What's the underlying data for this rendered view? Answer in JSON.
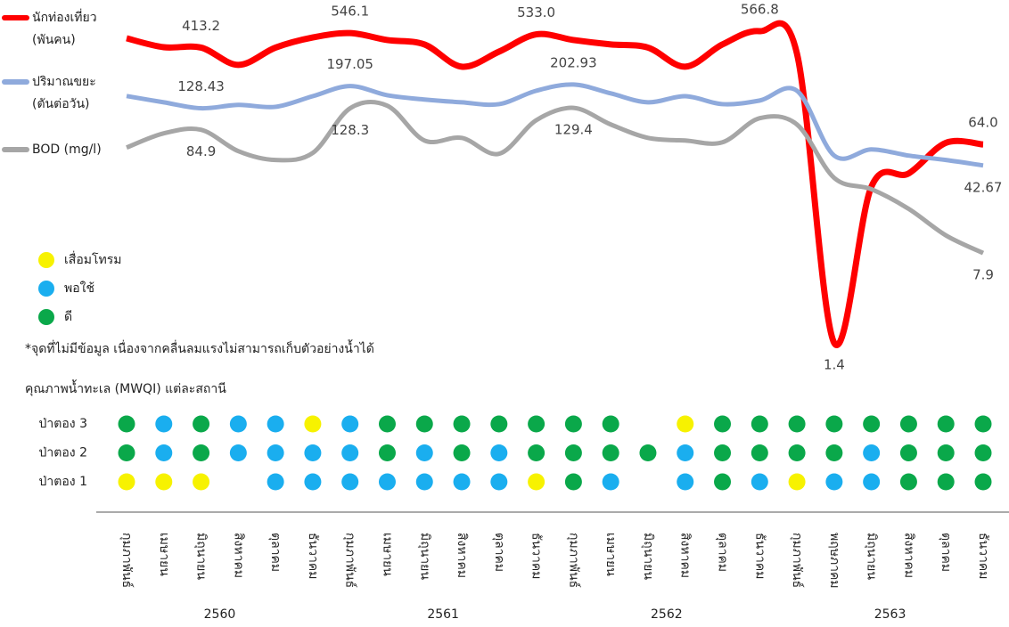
{
  "chart_data": {
    "type": "line",
    "log_scale": true,
    "categories": [
      "กุมภาพันธ์",
      "เมษายน",
      "มิถุนายน",
      "สิงหาคม",
      "ตุลาคม",
      "ธันวาคม",
      "กุมภาพันธ์",
      "เมษายน",
      "มิถุนายน",
      "สิงหาคม",
      "ตุลาคม",
      "ธันวาคม",
      "กุมภาพันธ์",
      "เมษายน",
      "มิถุนายน",
      "สิงหาคม",
      "ตุลาคม",
      "ธันวาคม",
      "กุมภาพันธ์",
      "พฤษภาคม",
      "มิถุนายน",
      "สิงหาคม",
      "ตุลาคม",
      "ธันวาคม"
    ],
    "groups": [
      "2560",
      "2561",
      "2562",
      "2563"
    ],
    "series": [
      {
        "name": "นักท่องเที่ยว\n(พันคน)",
        "color": "#ff0000",
        "values": [
          494,
          416,
          413.2,
          296,
          413,
          502,
          546.1,
          478,
          439,
          286,
          382,
          533,
          478,
          439,
          413,
          286,
          439,
          566.8,
          369,
          1.4,
          28.4,
          36.6,
          66,
          64
        ],
        "value_labels": [
          null,
          null,
          "413.2",
          null,
          null,
          null,
          "546.1",
          null,
          null,
          null,
          null,
          "533.0",
          null,
          null,
          null,
          null,
          null,
          "566.8",
          null,
          "1.4",
          null,
          null,
          null,
          "64.0"
        ]
      },
      {
        "name": "ปริมาณขยะ\n(ตันต่อวัน)",
        "color": "#8faadc",
        "values": [
          162.5,
          144,
          128.43,
          137,
          132,
          162,
          197.05,
          165,
          152,
          144,
          139,
          180,
          202.93,
          171,
          144,
          162,
          139,
          149,
          180,
          51.6,
          58.2,
          51.6,
          47.4,
          42.67
        ],
        "value_labels": [
          null,
          null,
          "128.43",
          null,
          null,
          null,
          "197.05",
          null,
          null,
          null,
          null,
          null,
          "202.93",
          null,
          null,
          null,
          null,
          null,
          null,
          null,
          null,
          null,
          null,
          "42.67"
        ]
      },
      {
        "name": "BOD (mg/l)",
        "color": "#a6a6a6",
        "values": [
          60.2,
          79.2,
          84.9,
          56.2,
          47.4,
          54.3,
          128.3,
          135,
          69,
          72.6,
          53.4,
          102,
          129.4,
          94,
          72.6,
          69,
          66.7,
          106,
          94,
          33.6,
          27,
          18.5,
          11.1,
          7.9
        ],
        "value_labels": [
          null,
          null,
          "84.9",
          null,
          null,
          null,
          "128.3",
          null,
          null,
          null,
          null,
          null,
          "129.4",
          null,
          null,
          null,
          null,
          null,
          null,
          null,
          null,
          null,
          null,
          "7.9"
        ]
      }
    ],
    "quality": {
      "title": "คุณภาพน้ำทะเล (MWQI) แต่ละสถานี",
      "note": "*จุดที่ไม่มีข้อมูล เนื่องจากคลื่นลมแรงไม่สามารถเก็บตัวอย่างน้ำได้",
      "legend": [
        {
          "name": "เสื่อมโทรม",
          "color": "#f7f200"
        },
        {
          "name": "พอใช้",
          "color": "#1aaeef"
        },
        {
          "name": "ดี",
          "color": "#0aa84a"
        }
      ],
      "stations": [
        {
          "name": "ป่าตอง 3",
          "status": [
            "ดี",
            "พอใช้",
            "ดี",
            "พอใช้",
            "พอใช้",
            "เสื่อมโทรม",
            "พอใช้",
            "ดี",
            "ดี",
            "ดี",
            "ดี",
            "ดี",
            "ดี",
            "ดี",
            null,
            "เสื่อมโทรม",
            "ดี",
            "ดี",
            "ดี",
            "ดี",
            "ดี",
            "ดี",
            "ดี",
            "ดี"
          ]
        },
        {
          "name": "ป่าตอง 2",
          "status": [
            "ดี",
            "พอใช้",
            "ดี",
            "พอใช้",
            "พอใช้",
            "พอใช้",
            "พอใช้",
            "ดี",
            "พอใช้",
            "ดี",
            "พอใช้",
            "ดี",
            "ดี",
            "ดี",
            "ดี",
            "พอใช้",
            "ดี",
            "ดี",
            "ดี",
            "ดี",
            "พอใช้",
            "ดี",
            "ดี",
            "ดี"
          ]
        },
        {
          "name": "ป่าตอง 1",
          "status": [
            "เสื่อมโทรม",
            "เสื่อมโทรม",
            "เสื่อมโทรม",
            null,
            "พอใช้",
            "พอใช้",
            "พอใช้",
            "พอใช้",
            "พอใช้",
            "พอใช้",
            "พอใช้",
            "เสื่อมโทรม",
            "ดี",
            "พอใช้",
            null,
            "พอใช้",
            "ดี",
            "พอใช้",
            "เสื่อมโทรม",
            "พอใช้",
            "พอใช้",
            "ดี",
            "ดี",
            "ดี"
          ]
        }
      ]
    }
  }
}
